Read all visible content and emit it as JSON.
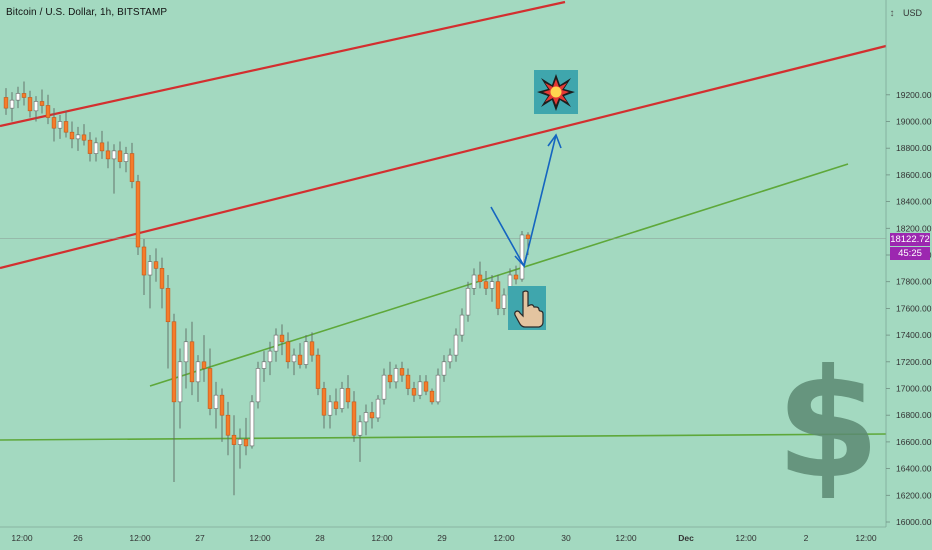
{
  "header": {
    "title": "Bitcoin / U.S. Dollar, 1h, BITSTAMP",
    "currency": "USD",
    "currency_symbol": "↕"
  },
  "price_badge": {
    "price": "18122.72",
    "countdown": "45:25"
  },
  "colors": {
    "background": "#a3d9c0",
    "bull_body": "#ffffff",
    "bear_body": "#f57c2a",
    "wick": "#5d6a64",
    "channel_red": "#d32f2f",
    "support_green": "#5ea83a",
    "arrow_blue": "#1565c0",
    "badge_purple": "#9c27b0",
    "dollar_sign": "#5c8a73"
  },
  "icons": {
    "target": "explosion-icon",
    "bounce": "pointing-hand-icon",
    "watermark": "dollar-sign-icon"
  },
  "chart_data": {
    "type": "candlestick",
    "title": "Bitcoin / U.S. Dollar, 1h, BITSTAMP",
    "xlabel": "",
    "ylabel": "USD",
    "ylim": [
      16000,
      19500
    ],
    "y_ticks": [
      16000,
      16200,
      16400,
      16600,
      16800,
      17000,
      17200,
      17400,
      17600,
      17800,
      18000,
      18200,
      18400,
      18600,
      18800,
      19000,
      19200
    ],
    "x_ticks": [
      "12:00",
      "26",
      "12:00",
      "27",
      "12:00",
      "28",
      "12:00",
      "29",
      "12:00",
      "30",
      "12:00",
      "Dec",
      "12:00",
      "2",
      "12:00"
    ],
    "grid": false,
    "last_price": 18122.72,
    "candles_note": "hourly OHLC, Nov 25 21:00 – Nov 29 14:00 (approximate)",
    "candles": [
      [
        19180,
        19250,
        19050,
        19100
      ],
      [
        19100,
        19220,
        19000,
        19160
      ],
      [
        19160,
        19260,
        19100,
        19210
      ],
      [
        19210,
        19300,
        19120,
        19180
      ],
      [
        19180,
        19230,
        19030,
        19080
      ],
      [
        19080,
        19190,
        19000,
        19150
      ],
      [
        19150,
        19240,
        19060,
        19120
      ],
      [
        19120,
        19200,
        18980,
        19030
      ],
      [
        19030,
        19100,
        18850,
        18950
      ],
      [
        18950,
        19050,
        18870,
        19000
      ],
      [
        19000,
        19080,
        18880,
        18920
      ],
      [
        18920,
        19000,
        18800,
        18870
      ],
      [
        18870,
        18960,
        18780,
        18900
      ],
      [
        18900,
        18980,
        18820,
        18860
      ],
      [
        18860,
        18920,
        18700,
        18760
      ],
      [
        18760,
        18880,
        18700,
        18840
      ],
      [
        18840,
        18930,
        18720,
        18780
      ],
      [
        18780,
        18850,
        18650,
        18720
      ],
      [
        18720,
        18830,
        18460,
        18780
      ],
      [
        18780,
        18850,
        18650,
        18700
      ],
      [
        18700,
        18810,
        18620,
        18760
      ],
      [
        18760,
        18840,
        18500,
        18550
      ],
      [
        18550,
        18600,
        18000,
        18060
      ],
      [
        18060,
        18120,
        17700,
        17850
      ],
      [
        17850,
        18000,
        17600,
        17950
      ],
      [
        17950,
        18050,
        17800,
        17900
      ],
      [
        17900,
        17980,
        17600,
        17750
      ],
      [
        17750,
        17850,
        17150,
        17500
      ],
      [
        17500,
        17560,
        16300,
        16900
      ],
      [
        16900,
        17300,
        16700,
        17200
      ],
      [
        17200,
        17450,
        17000,
        17350
      ],
      [
        17350,
        17500,
        16950,
        17050
      ],
      [
        17050,
        17250,
        16900,
        17200
      ],
      [
        17200,
        17400,
        17050,
        17150
      ],
      [
        17150,
        17300,
        16800,
        16850
      ],
      [
        16850,
        17050,
        16700,
        16950
      ],
      [
        16950,
        17000,
        16600,
        16800
      ],
      [
        16800,
        16900,
        16500,
        16650
      ],
      [
        16650,
        16800,
        16200,
        16580
      ],
      [
        16580,
        16700,
        16400,
        16620
      ],
      [
        16620,
        16780,
        16500,
        16570
      ],
      [
        16570,
        16950,
        16550,
        16900
      ],
      [
        16900,
        17200,
        16850,
        17150
      ],
      [
        17150,
        17280,
        17050,
        17200
      ],
      [
        17200,
        17350,
        17100,
        17280
      ],
      [
        17280,
        17450,
        17200,
        17400
      ],
      [
        17400,
        17480,
        17250,
        17350
      ],
      [
        17350,
        17420,
        17150,
        17200
      ],
      [
        17200,
        17300,
        17100,
        17250
      ],
      [
        17250,
        17340,
        17150,
        17180
      ],
      [
        17180,
        17400,
        17150,
        17350
      ],
      [
        17350,
        17420,
        17200,
        17250
      ],
      [
        17250,
        17300,
        16950,
        17000
      ],
      [
        17000,
        17050,
        16700,
        16800
      ],
      [
        16800,
        16950,
        16700,
        16900
      ],
      [
        16900,
        17000,
        16800,
        16850
      ],
      [
        16850,
        17050,
        16820,
        17000
      ],
      [
        17000,
        17100,
        16850,
        16900
      ],
      [
        16900,
        16980,
        16600,
        16650
      ],
      [
        16650,
        16800,
        16450,
        16750
      ],
      [
        16750,
        16880,
        16650,
        16820
      ],
      [
        16820,
        16900,
        16700,
        16780
      ],
      [
        16780,
        16950,
        16750,
        16920
      ],
      [
        16920,
        17150,
        16880,
        17100
      ],
      [
        17100,
        17200,
        17000,
        17050
      ],
      [
        17050,
        17180,
        17000,
        17150
      ],
      [
        17150,
        17200,
        17050,
        17100
      ],
      [
        17100,
        17150,
        16950,
        17000
      ],
      [
        17000,
        17050,
        16900,
        16950
      ],
      [
        16950,
        17100,
        16920,
        17050
      ],
      [
        17050,
        17100,
        16950,
        16980
      ],
      [
        16980,
        17000,
        16880,
        16900
      ],
      [
        16900,
        17150,
        16880,
        17100
      ],
      [
        17100,
        17250,
        17050,
        17200
      ],
      [
        17200,
        17300,
        17150,
        17250
      ],
      [
        17250,
        17450,
        17200,
        17400
      ],
      [
        17400,
        17600,
        17350,
        17550
      ],
      [
        17550,
        17800,
        17500,
        17750
      ],
      [
        17750,
        17900,
        17700,
        17850
      ],
      [
        17850,
        17950,
        17750,
        17800
      ],
      [
        17800,
        17880,
        17700,
        17750
      ],
      [
        17750,
        17850,
        17650,
        17800
      ],
      [
        17800,
        17850,
        17550,
        17600
      ],
      [
        17600,
        17750,
        17550,
        17700
      ],
      [
        17700,
        17900,
        17680,
        17850
      ],
      [
        17850,
        17920,
        17780,
        17820
      ],
      [
        17820,
        18180,
        17800,
        18150
      ],
      [
        18150,
        18170,
        18000,
        18122
      ]
    ]
  }
}
